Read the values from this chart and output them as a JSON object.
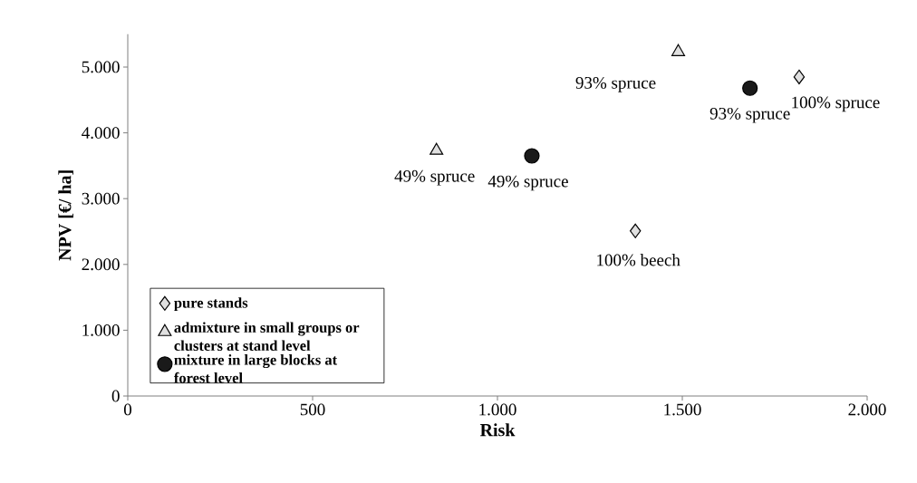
{
  "chart_data": {
    "type": "scatter",
    "xlabel": "Risk",
    "ylabel": "NPV [€/ ha]",
    "xlim": [
      0,
      2000
    ],
    "ylim": [
      0,
      5500
    ],
    "xticks": [
      0,
      500,
      {
        "value": 1000,
        "label": "1.000"
      },
      {
        "value": 1500,
        "label": "1.500"
      },
      {
        "value": 2000,
        "label": "2.000"
      }
    ],
    "yticks": [
      0,
      {
        "value": 1000,
        "label": "1.000"
      },
      {
        "value": 2000,
        "label": "2.000"
      },
      {
        "value": 3000,
        "label": "3.000"
      },
      {
        "value": 4000,
        "label": "4.000"
      },
      {
        "value": 5000,
        "label": "5.000"
      }
    ],
    "legend": "bottom left",
    "series": [
      {
        "name": "pure stands",
        "color": "#e0e0e0",
        "marker": "diamond",
        "x": [
          1373,
          1816
        ],
        "values": [
          2510,
          4850
        ]
      },
      {
        "name": "admixture in small groups or clusters at stand level",
        "color": "#e0e0e0",
        "marker": "triangle",
        "x": [
          835,
          1489
        ],
        "values": [
          3730,
          5230
        ]
      },
      {
        "name": "mixture in large blocks at forest level",
        "color": "#1a1a1a",
        "marker": "circle",
        "x": [
          1093,
          1683
        ],
        "values": [
          3650,
          4680
        ]
      }
    ],
    "annotations": [
      {
        "text": "49% spruce",
        "x": 835,
        "y": 3730
      },
      {
        "text": "49% spruce",
        "x": 1093,
        "y": 3650
      },
      {
        "text": "93% spruce",
        "x": 1489,
        "y": 5230
      },
      {
        "text": "93% spruce",
        "x": 1683,
        "y": 4680
      },
      {
        "text": "100% spruce",
        "x": 1816,
        "y": 4850
      },
      {
        "text": "100% beech",
        "x": 1373,
        "y": 2510
      }
    ]
  }
}
